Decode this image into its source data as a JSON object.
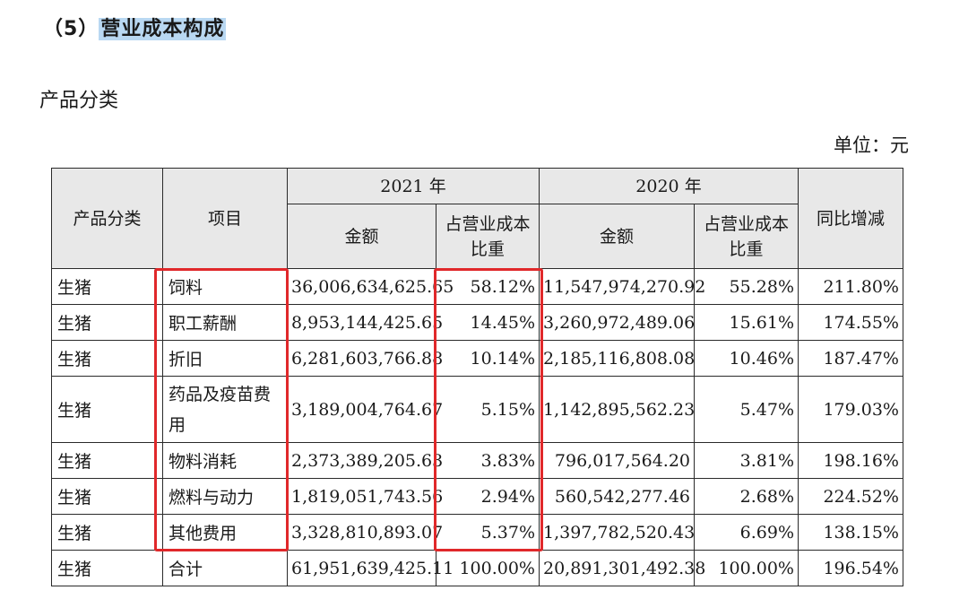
{
  "heading": {
    "prefix": "（5）",
    "title": "营业成本构成"
  },
  "subtitle": "产品分类",
  "unit": "单位：元",
  "table": {
    "headers": {
      "category": "产品分类",
      "item": "项目",
      "year2021": "2021 年",
      "year2020": "2020 年",
      "amount": "金额",
      "ratio": "占营业成本比重",
      "yoy": "同比增减"
    },
    "rows": [
      {
        "category": "生猪",
        "item": "饲料",
        "amount2021": "36,006,634,625.65",
        "ratio2021": "58.12%",
        "amount2020": "11,547,974,270.92",
        "ratio2020": "55.28%",
        "yoy": "211.80%"
      },
      {
        "category": "生猪",
        "item": "职工薪酬",
        "amount2021": "8,953,144,425.65",
        "ratio2021": "14.45%",
        "amount2020": "3,260,972,489.06",
        "ratio2020": "15.61%",
        "yoy": "174.55%"
      },
      {
        "category": "生猪",
        "item": "折旧",
        "amount2021": "6,281,603,766.88",
        "ratio2021": "10.14%",
        "amount2020": "2,185,116,808.08",
        "ratio2020": "10.46%",
        "yoy": "187.47%"
      },
      {
        "category": "生猪",
        "item": "药品及疫苗费用",
        "amount2021": "3,189,004,764.67",
        "ratio2021": "5.15%",
        "amount2020": "1,142,895,562.23",
        "ratio2020": "5.47%",
        "yoy": "179.03%"
      },
      {
        "category": "生猪",
        "item": "物料消耗",
        "amount2021": "2,373,389,205.63",
        "ratio2021": "3.83%",
        "amount2020": "796,017,564.20",
        "ratio2020": "3.81%",
        "yoy": "198.16%"
      },
      {
        "category": "生猪",
        "item": "燃料与动力",
        "amount2021": "1,819,051,743.56",
        "ratio2021": "2.94%",
        "amount2020": "560,542,277.46",
        "ratio2020": "2.68%",
        "yoy": "224.52%"
      },
      {
        "category": "生猪",
        "item": "其他费用",
        "amount2021": "3,328,810,893.07",
        "ratio2021": "5.37%",
        "amount2020": "1,397,782,520.43",
        "ratio2020": "6.69%",
        "yoy": "138.15%"
      },
      {
        "category": "生猪",
        "item": "合计",
        "amount2021": "61,951,639,425.11",
        "ratio2021": "100.00%",
        "amount2020": "20,891,301,492.38",
        "ratio2020": "100.00%",
        "yoy": "196.54%"
      }
    ]
  },
  "colors": {
    "highlight": "#b9d8f2",
    "annotation_red": "#e0282a",
    "header_bg": "#e8e8e8"
  }
}
